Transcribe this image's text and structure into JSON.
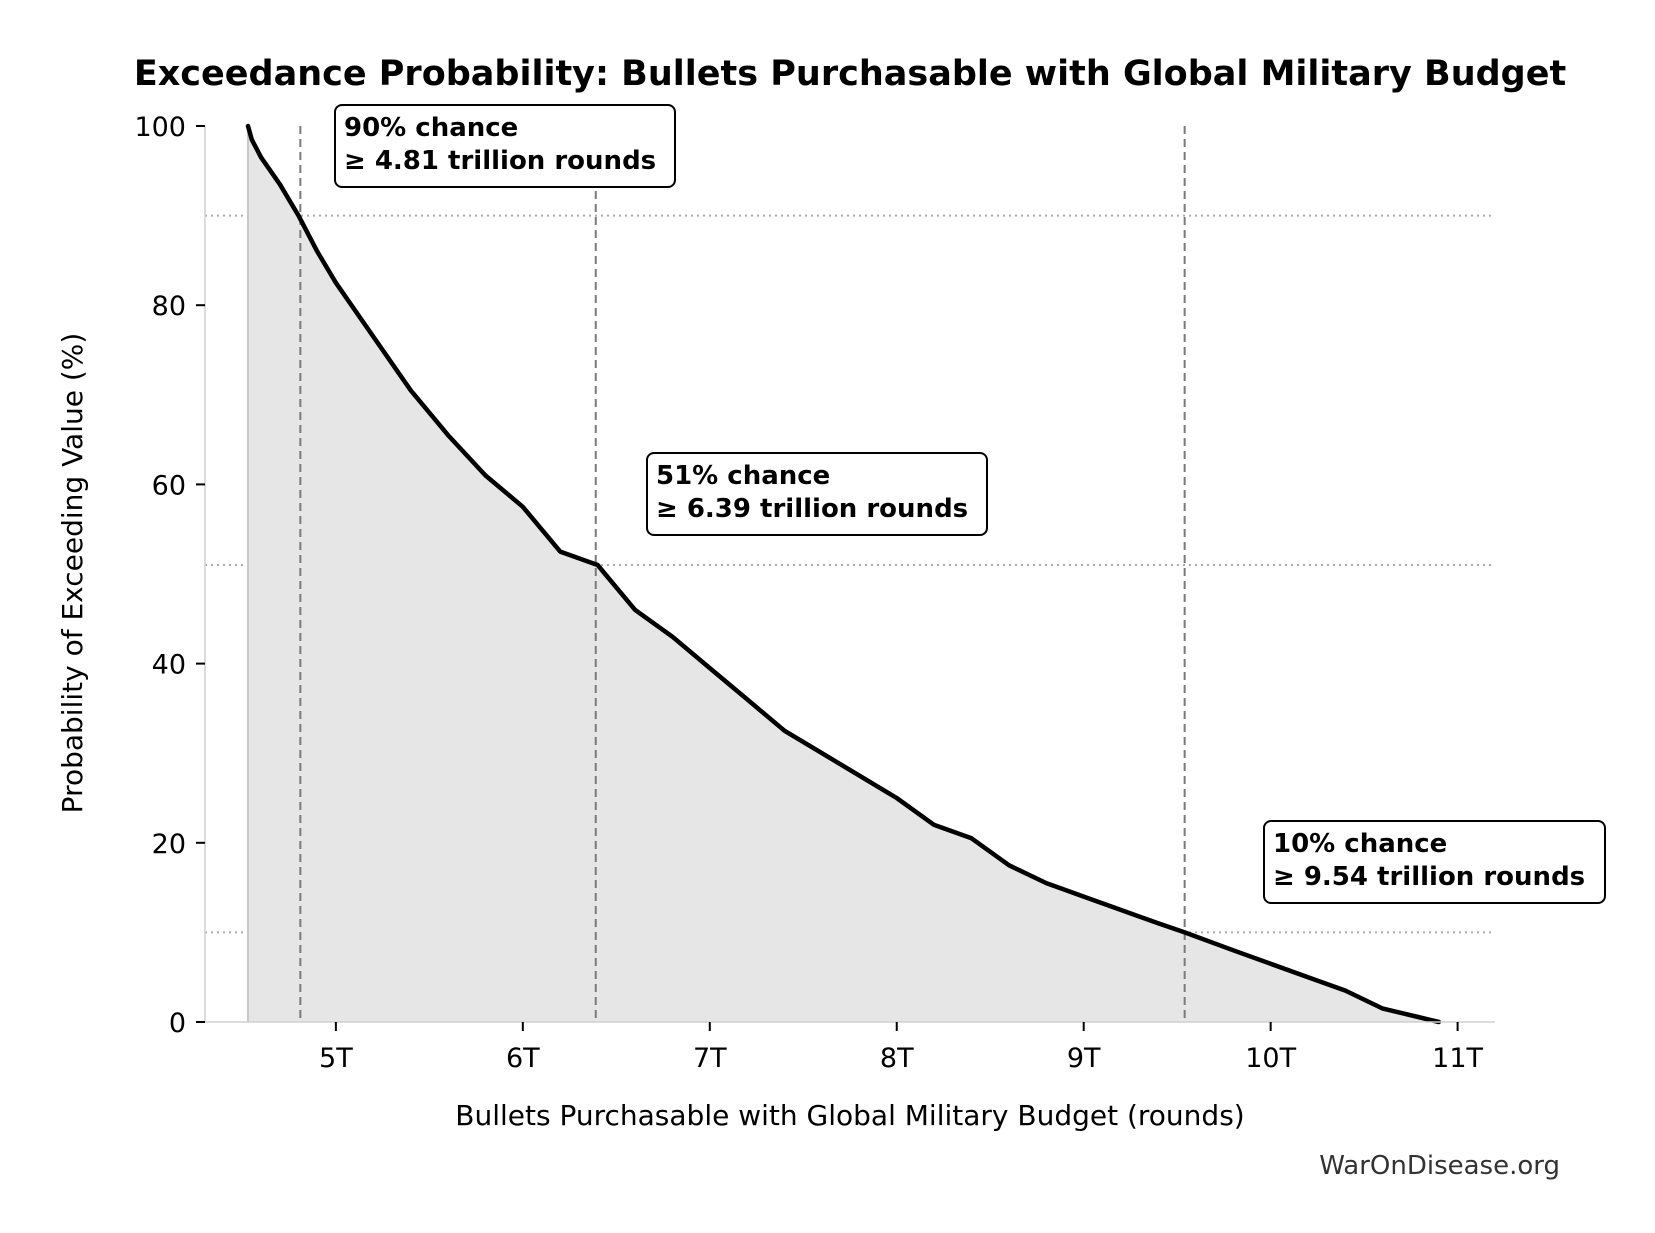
{
  "chart_data": {
    "type": "area",
    "title": "Exceedance Probability: Bullets Purchasable with Global Military Budget",
    "xlabel": "Bullets Purchasable with Global Military Budget (rounds)",
    "ylabel": "Probability of Exceeding Value (%)",
    "xlim": [
      4.3,
      11.2
    ],
    "ylim": [
      0,
      100
    ],
    "x_unit": "trillion rounds",
    "x_ticks": [
      5,
      6,
      7,
      8,
      9,
      10,
      11
    ],
    "x_tick_labels": [
      "5T",
      "6T",
      "7T",
      "8T",
      "9T",
      "10T",
      "11T"
    ],
    "y_ticks": [
      0,
      20,
      40,
      60,
      80,
      100
    ],
    "y_tick_labels": [
      "0",
      "20",
      "40",
      "60",
      "80",
      "100"
    ],
    "grid": false,
    "series": [
      {
        "x": [
          4.53,
          4.55,
          4.6,
          4.7,
          4.8,
          4.9,
          5.0,
          5.2,
          5.4,
          5.6,
          5.8,
          6.0,
          6.2,
          6.4,
          6.6,
          6.8,
          7.0,
          7.2,
          7.4,
          7.6,
          7.8,
          8.0,
          8.2,
          8.4,
          8.6,
          8.8,
          9.0,
          9.2,
          9.4,
          9.54,
          9.8,
          10.0,
          10.2,
          10.4,
          10.6,
          10.8,
          10.9
        ],
        "y": [
          100,
          98.5,
          96.5,
          93.5,
          90,
          86,
          82.5,
          76.5,
          70.5,
          65.5,
          61,
          57.5,
          52.5,
          51,
          46,
          43,
          39.5,
          36,
          32.5,
          30,
          27.5,
          25,
          22,
          20.5,
          17.5,
          15.5,
          14,
          12.5,
          11,
          10,
          8,
          6.5,
          5,
          3.5,
          1.5,
          0.5,
          0
        ]
      }
    ],
    "reference_lines": [
      {
        "x": 4.81,
        "y": 90
      },
      {
        "x": 6.39,
        "y": 51
      },
      {
        "x": 9.54,
        "y": 10
      }
    ],
    "annotations": [
      {
        "line1": "90% chance",
        "line2": "≥ 4.81 trillion rounds"
      },
      {
        "line1": "51% chance",
        "line2": "≥ 6.39 trillion rounds"
      },
      {
        "line1": "10% chance",
        "line2": "≥ 9.54 trillion rounds"
      }
    ],
    "colors": {
      "line": "#000000",
      "fill": "#e6e6e6",
      "reference": "#808080"
    }
  },
  "credit": "WarOnDisease.org"
}
